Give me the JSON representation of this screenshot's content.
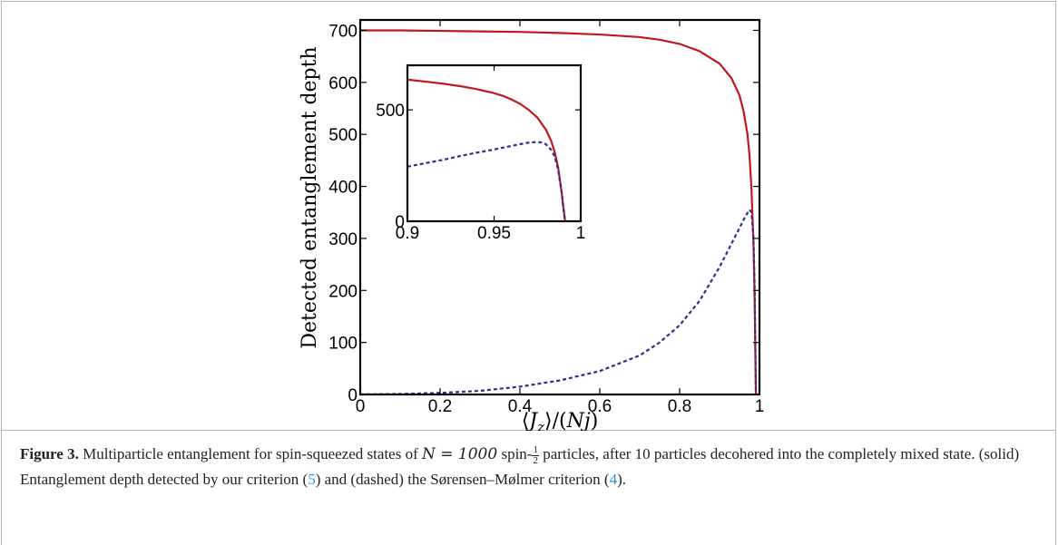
{
  "chart_data": [
    {
      "type": "line",
      "xlabel": "⟨J_z⟩/(Nj)",
      "ylabel": "Detected entanglement depth",
      "xlim": [
        0,
        1
      ],
      "ylim": [
        0,
        720
      ],
      "xticks": [
        "0",
        "0.2",
        "0.4",
        "0.6",
        "0.8",
        "1"
      ],
      "yticks": [
        "0",
        "100",
        "200",
        "300",
        "400",
        "500",
        "600",
        "700"
      ],
      "grid": false,
      "series": [
        {
          "style": "solid",
          "color": "#c0181e",
          "points": [
            [
              0,
              700
            ],
            [
              0.1,
              700
            ],
            [
              0.2,
              699
            ],
            [
              0.3,
              698
            ],
            [
              0.4,
              697
            ],
            [
              0.5,
              695
            ],
            [
              0.6,
              692
            ],
            [
              0.7,
              687
            ],
            [
              0.75,
              682
            ],
            [
              0.8,
              674
            ],
            [
              0.85,
              660
            ],
            [
              0.9,
              636
            ],
            [
              0.93,
              608
            ],
            [
              0.95,
              575
            ],
            [
              0.96,
              545
            ],
            [
              0.97,
              500
            ],
            [
              0.975,
              460
            ],
            [
              0.98,
              395
            ],
            [
              0.985,
              290
            ],
            [
              0.988,
              180
            ],
            [
              0.99,
              60
            ],
            [
              0.991,
              0
            ]
          ]
        },
        {
          "style": "dashed",
          "color": "#2b2f8e",
          "points": [
            [
              0,
              0
            ],
            [
              0.1,
              1
            ],
            [
              0.2,
              3
            ],
            [
              0.3,
              7
            ],
            [
              0.4,
              15
            ],
            [
              0.5,
              27
            ],
            [
              0.6,
              45
            ],
            [
              0.7,
              75
            ],
            [
              0.75,
              100
            ],
            [
              0.8,
              133
            ],
            [
              0.85,
              180
            ],
            [
              0.9,
              245
            ],
            [
              0.93,
              290
            ],
            [
              0.95,
              320
            ],
            [
              0.965,
              343
            ],
            [
              0.975,
              355
            ],
            [
              0.98,
              350
            ],
            [
              0.985,
              300
            ],
            [
              0.988,
              200
            ],
            [
              0.99,
              70
            ],
            [
              0.991,
              0
            ]
          ]
        }
      ]
    },
    {
      "type": "line",
      "role": "inset",
      "xlim": [
        0.9,
        1
      ],
      "ylim": [
        0,
        700
      ],
      "xticks": [
        "0.9",
        "0.95",
        "1"
      ],
      "yticks": [
        "0",
        "500"
      ],
      "grid": false,
      "series": [
        {
          "style": "solid",
          "color": "#c0181e",
          "points": [
            [
              0.9,
              636
            ],
            [
              0.91,
              627
            ],
            [
              0.92,
              618
            ],
            [
              0.93,
              607
            ],
            [
              0.94,
              593
            ],
            [
              0.95,
              575
            ],
            [
              0.955,
              563
            ],
            [
              0.96,
              547
            ],
            [
              0.965,
              527
            ],
            [
              0.97,
              500
            ],
            [
              0.975,
              465
            ],
            [
              0.98,
              410
            ],
            [
              0.983,
              360
            ],
            [
              0.985,
              310
            ],
            [
              0.987,
              240
            ],
            [
              0.989,
              130
            ],
            [
              0.99,
              60
            ],
            [
              0.991,
              0
            ]
          ]
        },
        {
          "style": "dashed",
          "color": "#2b2f8e",
          "points": [
            [
              0.9,
              245
            ],
            [
              0.91,
              260
            ],
            [
              0.92,
              275
            ],
            [
              0.93,
              292
            ],
            [
              0.94,
              308
            ],
            [
              0.95,
              322
            ],
            [
              0.96,
              338
            ],
            [
              0.965,
              346
            ],
            [
              0.97,
              353
            ],
            [
              0.975,
              356
            ],
            [
              0.978,
              353
            ],
            [
              0.98,
              345
            ],
            [
              0.983,
              320
            ],
            [
              0.985,
              290
            ],
            [
              0.987,
              230
            ],
            [
              0.989,
              130
            ],
            [
              0.99,
              60
            ],
            [
              0.991,
              0
            ]
          ]
        }
      ]
    }
  ],
  "caption": {
    "label": "Figure 3.",
    "text_a": " Multiparticle entanglement for spin-squeezed states of ",
    "math_n": "N = 1000",
    "text_b": " spin-",
    "frac_num": "1",
    "frac_den": "2",
    "text_c": " particles, after 10 particles decohered into the completely mixed state. (solid) Entanglement depth detected by our criterion (",
    "ref_1": "5",
    "text_d": ") and (dashed) the Sørensen–Mølmer criterion (",
    "ref_2": "4",
    "text_e": ")."
  }
}
